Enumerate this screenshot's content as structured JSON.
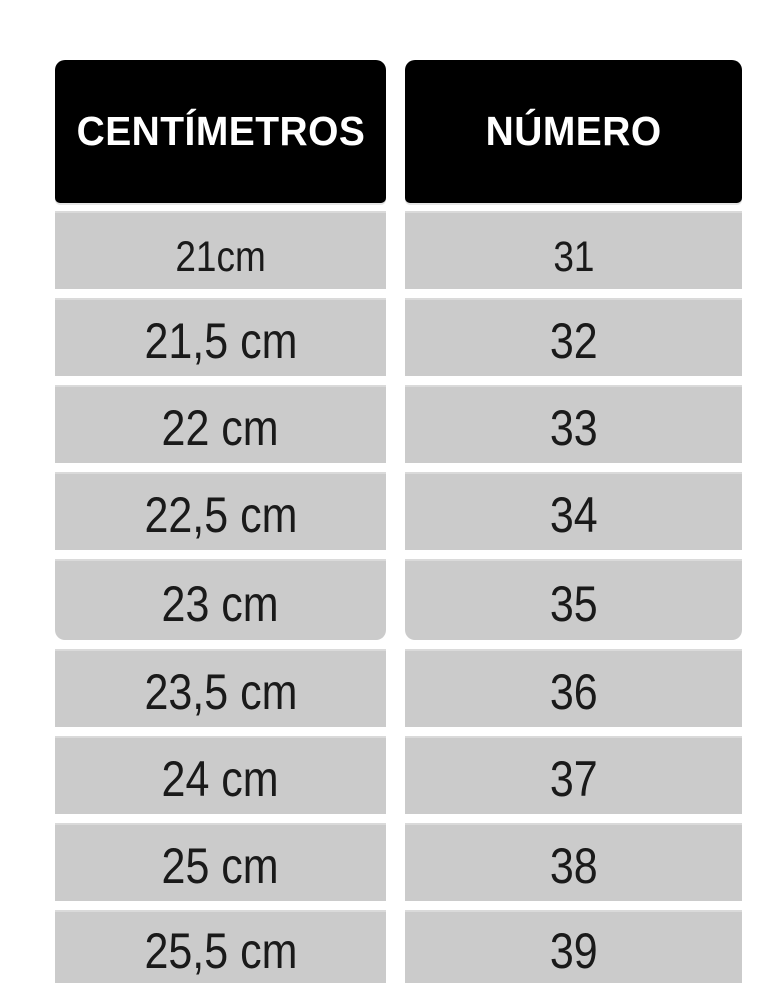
{
  "chart_data": {
    "type": "table",
    "columns": [
      "CENTÍMETROS",
      "NÚMERO"
    ],
    "rows": [
      [
        "21cm",
        "31"
      ],
      [
        "21,5 cm",
        "32"
      ],
      [
        "22 cm",
        "33"
      ],
      [
        "22,5 cm",
        "34"
      ],
      [
        "23 cm",
        "35"
      ],
      [
        "23,5 cm",
        "36"
      ],
      [
        "24 cm",
        "37"
      ],
      [
        "25 cm",
        "38"
      ],
      [
        "25,5 cm",
        "39"
      ]
    ],
    "title": "",
    "layout_hint": "two stacked column blocks; header black rounded; row group of 5 ends with rounded bottom corners; grid off"
  },
  "colors": {
    "background": "#ffffff",
    "header_bg": "#000000",
    "header_text": "#ffffff",
    "row_bg": "#cbcbcb",
    "row_text": "#1a1a1a"
  }
}
